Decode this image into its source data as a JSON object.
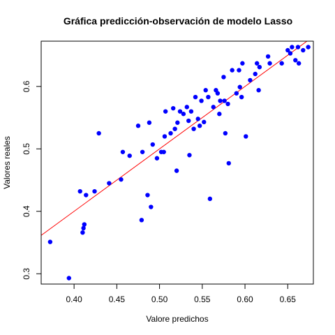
{
  "chart_data": {
    "type": "scatter",
    "title": "Gráfica predicción-observación de modelo Lasso",
    "xlabel": "Valore predichos",
    "ylabel": "Valores reales",
    "xlim": [
      0.3615,
      0.68
    ],
    "ylim": [
      0.2835,
      0.6725
    ],
    "xticks": [
      {
        "value": 0.4,
        "label": "0.40"
      },
      {
        "value": 0.45,
        "label": "0.45"
      },
      {
        "value": 0.5,
        "label": "0.50"
      },
      {
        "value": 0.55,
        "label": "0.55"
      },
      {
        "value": 0.6,
        "label": "0.60"
      },
      {
        "value": 0.65,
        "label": "0.65"
      }
    ],
    "yticks": [
      {
        "value": 0.3,
        "label": "0.3"
      },
      {
        "value": 0.4,
        "label": "0.4"
      },
      {
        "value": 0.5,
        "label": "0.5"
      },
      {
        "value": 0.6,
        "label": "0.6"
      }
    ],
    "grid": false,
    "point_color": "#0000ff",
    "line_color": "#ff0000",
    "reference_line": {
      "slope": 1,
      "intercept": 0
    },
    "points": [
      {
        "x": 0.372,
        "y": 0.351
      },
      {
        "x": 0.394,
        "y": 0.293
      },
      {
        "x": 0.407,
        "y": 0.432
      },
      {
        "x": 0.41,
        "y": 0.366
      },
      {
        "x": 0.411,
        "y": 0.373
      },
      {
        "x": 0.412,
        "y": 0.379
      },
      {
        "x": 0.414,
        "y": 0.426
      },
      {
        "x": 0.424,
        "y": 0.432
      },
      {
        "x": 0.429,
        "y": 0.525
      },
      {
        "x": 0.441,
        "y": 0.445
      },
      {
        "x": 0.455,
        "y": 0.451
      },
      {
        "x": 0.457,
        "y": 0.495
      },
      {
        "x": 0.465,
        "y": 0.489
      },
      {
        "x": 0.475,
        "y": 0.537
      },
      {
        "x": 0.479,
        "y": 0.386
      },
      {
        "x": 0.48,
        "y": 0.495
      },
      {
        "x": 0.486,
        "y": 0.426
      },
      {
        "x": 0.488,
        "y": 0.542
      },
      {
        "x": 0.49,
        "y": 0.407
      },
      {
        "x": 0.492,
        "y": 0.507
      },
      {
        "x": 0.497,
        "y": 0.485
      },
      {
        "x": 0.502,
        "y": 0.495
      },
      {
        "x": 0.505,
        "y": 0.495
      },
      {
        "x": 0.506,
        "y": 0.52
      },
      {
        "x": 0.507,
        "y": 0.56
      },
      {
        "x": 0.513,
        "y": 0.525
      },
      {
        "x": 0.516,
        "y": 0.565
      },
      {
        "x": 0.518,
        "y": 0.532
      },
      {
        "x": 0.52,
        "y": 0.465
      },
      {
        "x": 0.521,
        "y": 0.542
      },
      {
        "x": 0.524,
        "y": 0.56
      },
      {
        "x": 0.528,
        "y": 0.556
      },
      {
        "x": 0.532,
        "y": 0.567
      },
      {
        "x": 0.534,
        "y": 0.545
      },
      {
        "x": 0.535,
        "y": 0.49
      },
      {
        "x": 0.537,
        "y": 0.56
      },
      {
        "x": 0.54,
        "y": 0.532
      },
      {
        "x": 0.542,
        "y": 0.583
      },
      {
        "x": 0.545,
        "y": 0.548
      },
      {
        "x": 0.547,
        "y": 0.537
      },
      {
        "x": 0.549,
        "y": 0.577
      },
      {
        "x": 0.552,
        "y": 0.543
      },
      {
        "x": 0.554,
        "y": 0.594
      },
      {
        "x": 0.557,
        "y": 0.583
      },
      {
        "x": 0.559,
        "y": 0.42
      },
      {
        "x": 0.563,
        "y": 0.567
      },
      {
        "x": 0.566,
        "y": 0.594
      },
      {
        "x": 0.568,
        "y": 0.589
      },
      {
        "x": 0.57,
        "y": 0.556
      },
      {
        "x": 0.571,
        "y": 0.577
      },
      {
        "x": 0.575,
        "y": 0.615
      },
      {
        "x": 0.576,
        "y": 0.577
      },
      {
        "x": 0.577,
        "y": 0.525
      },
      {
        "x": 0.58,
        "y": 0.572
      },
      {
        "x": 0.581,
        "y": 0.477
      },
      {
        "x": 0.585,
        "y": 0.626
      },
      {
        "x": 0.59,
        "y": 0.589
      },
      {
        "x": 0.593,
        "y": 0.626
      },
      {
        "x": 0.594,
        "y": 0.599
      },
      {
        "x": 0.596,
        "y": 0.583
      },
      {
        "x": 0.597,
        "y": 0.637
      },
      {
        "x": 0.601,
        "y": 0.52
      },
      {
        "x": 0.606,
        "y": 0.61
      },
      {
        "x": 0.612,
        "y": 0.62
      },
      {
        "x": 0.614,
        "y": 0.637
      },
      {
        "x": 0.616,
        "y": 0.594
      },
      {
        "x": 0.617,
        "y": 0.631
      },
      {
        "x": 0.627,
        "y": 0.648
      },
      {
        "x": 0.629,
        "y": 0.637
      },
      {
        "x": 0.643,
        "y": 0.637
      },
      {
        "x": 0.65,
        "y": 0.658
      },
      {
        "x": 0.653,
        "y": 0.653
      },
      {
        "x": 0.655,
        "y": 0.663
      },
      {
        "x": 0.659,
        "y": 0.642
      },
      {
        "x": 0.662,
        "y": 0.663
      },
      {
        "x": 0.663,
        "y": 0.637
      },
      {
        "x": 0.668,
        "y": 0.658
      },
      {
        "x": 0.674,
        "y": 0.663
      }
    ]
  }
}
